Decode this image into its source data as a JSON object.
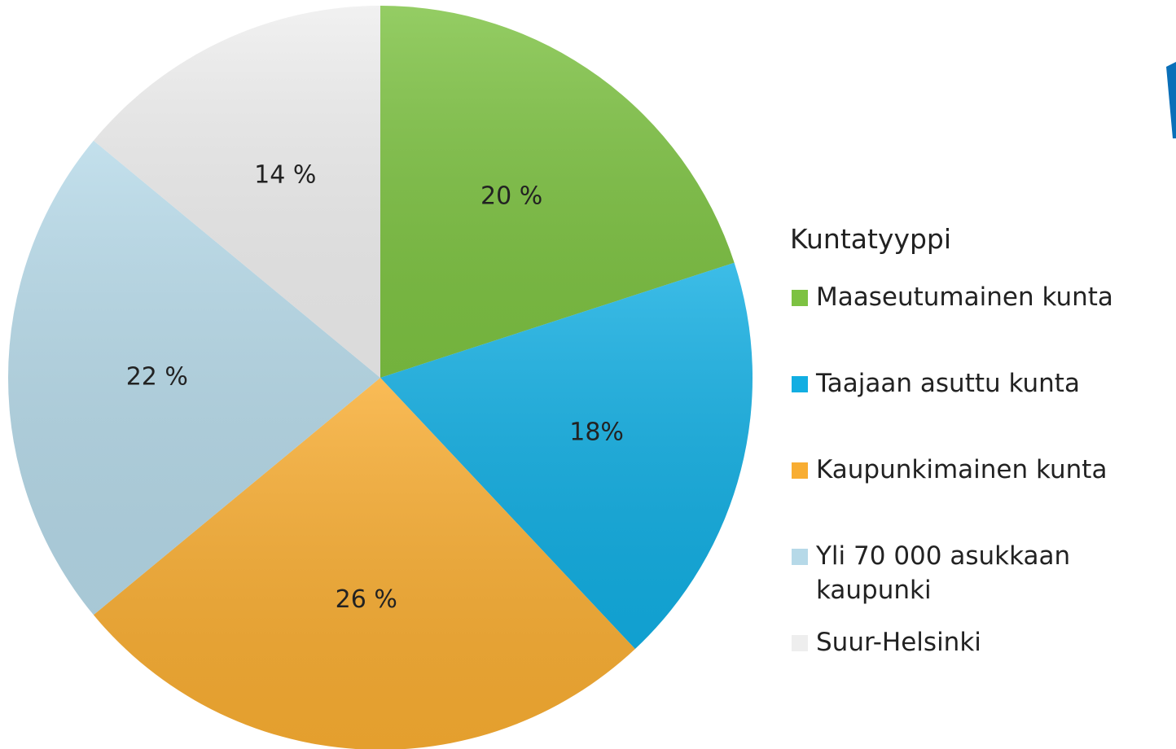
{
  "chart_data": {
    "type": "pie",
    "legend_title": "Kuntatyyppi",
    "categories": [
      "Maaseutumainen kunta",
      "Taajaan asuttu kunta",
      "Kaupunkimainen kunta",
      "Yli 70 000 asukkaan kaupunki",
      "Suur-Helsinki"
    ],
    "values": [
      20,
      18,
      26,
      22,
      14
    ],
    "value_labels": [
      "20 %",
      "18%",
      "26 %",
      "22 %",
      "14 %"
    ],
    "colors": [
      "#7dc242",
      "#12aee2",
      "#f8ad32",
      "#b6d9e8",
      "#eeeeee"
    ],
    "legend": "right"
  }
}
